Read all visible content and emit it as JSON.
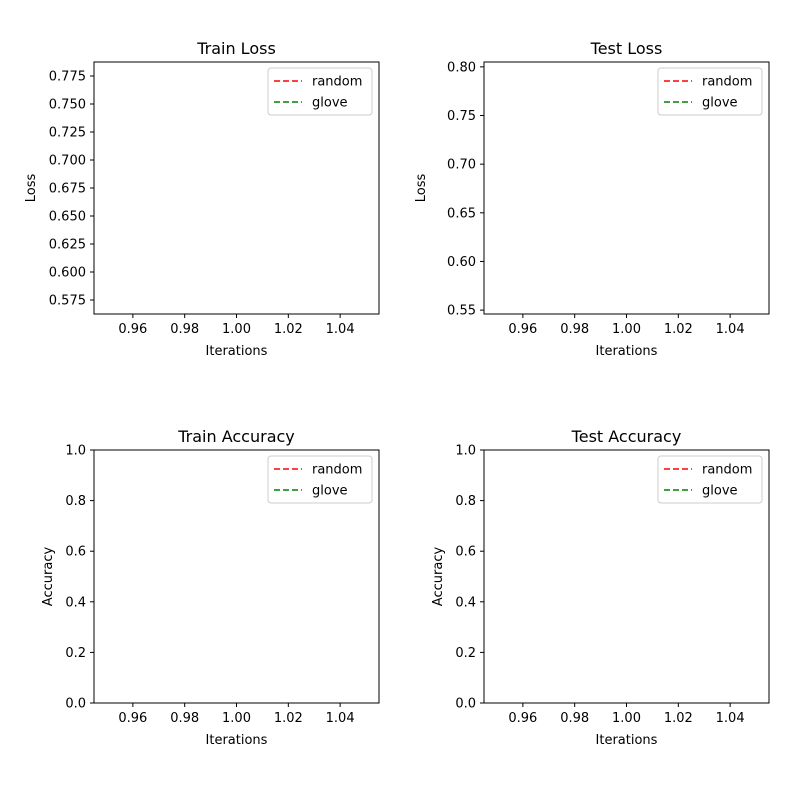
{
  "chart_data": [
    {
      "type": "line",
      "title": "Train Loss",
      "xlabel": "Iterations",
      "ylabel": "Loss",
      "xlim": [
        0.945,
        1.055
      ],
      "ylim": [
        0.5625,
        0.7875
      ],
      "xticks": [
        "0.96",
        "0.98",
        "1.00",
        "1.02",
        "1.04"
      ],
      "yticks": [
        "0.575",
        "0.600",
        "0.625",
        "0.650",
        "0.675",
        "0.700",
        "0.725",
        "0.750",
        "0.775"
      ],
      "grid": false,
      "legend": "top-right",
      "series": [
        {
          "name": "random",
          "color": "#ff0000",
          "linestyle": "dashed",
          "x": [],
          "y": []
        },
        {
          "name": "glove",
          "color": "#008000",
          "linestyle": "dashed",
          "x": [],
          "y": []
        }
      ]
    },
    {
      "type": "line",
      "title": "Test Loss",
      "xlabel": "Iterations",
      "ylabel": "Loss",
      "xlim": [
        0.945,
        1.055
      ],
      "ylim": [
        0.546,
        0.805
      ],
      "xticks": [
        "0.96",
        "0.98",
        "1.00",
        "1.02",
        "1.04"
      ],
      "yticks": [
        "0.55",
        "0.60",
        "0.65",
        "0.70",
        "0.75",
        "0.80"
      ],
      "grid": false,
      "legend": "top-right",
      "series": [
        {
          "name": "random",
          "color": "#ff0000",
          "linestyle": "dashed",
          "x": [],
          "y": []
        },
        {
          "name": "glove",
          "color": "#008000",
          "linestyle": "dashed",
          "x": [],
          "y": []
        }
      ]
    },
    {
      "type": "line",
      "title": "Train Accuracy",
      "xlabel": "Iterations",
      "ylabel": "Accuracy",
      "xlim": [
        0.945,
        1.055
      ],
      "ylim": [
        0.0,
        1.0
      ],
      "xticks": [
        "0.96",
        "0.98",
        "1.00",
        "1.02",
        "1.04"
      ],
      "yticks": [
        "0.0",
        "0.2",
        "0.4",
        "0.6",
        "0.8",
        "1.0"
      ],
      "grid": false,
      "legend": "top-right",
      "series": [
        {
          "name": "random",
          "color": "#ff0000",
          "linestyle": "dashed",
          "x": [],
          "y": []
        },
        {
          "name": "glove",
          "color": "#008000",
          "linestyle": "dashed",
          "x": [],
          "y": []
        }
      ]
    },
    {
      "type": "line",
      "title": "Test Accuracy",
      "xlabel": "Iterations",
      "ylabel": "Accuracy",
      "xlim": [
        0.945,
        1.055
      ],
      "ylim": [
        0.0,
        1.0
      ],
      "xticks": [
        "0.96",
        "0.98",
        "1.00",
        "1.02",
        "1.04"
      ],
      "yticks": [
        "0.0",
        "0.2",
        "0.4",
        "0.6",
        "0.8",
        "1.0"
      ],
      "grid": false,
      "legend": "top-right",
      "series": [
        {
          "name": "random",
          "color": "#ff0000",
          "linestyle": "dashed",
          "x": [],
          "y": []
        },
        {
          "name": "glove",
          "color": "#008000",
          "linestyle": "dashed",
          "x": [],
          "y": []
        }
      ]
    }
  ]
}
